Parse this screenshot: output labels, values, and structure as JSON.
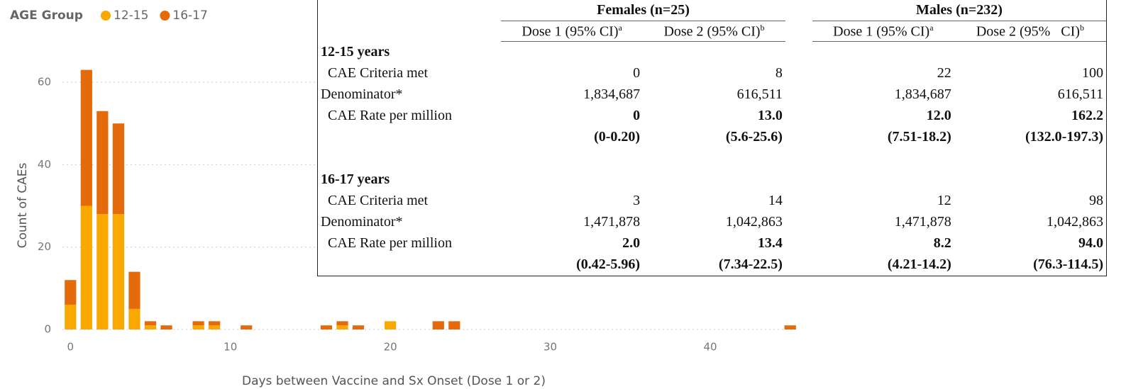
{
  "chart_data": {
    "type": "bar",
    "stacked": true,
    "legend_title": "AGE Group",
    "x": [
      0,
      1,
      2,
      3,
      4,
      5,
      6,
      8,
      9,
      11,
      16,
      17,
      18,
      20,
      23,
      24,
      45
    ],
    "series": [
      {
        "name": "12-15",
        "color": "#f9a800",
        "values": [
          6,
          30,
          28,
          28,
          5,
          1,
          0,
          1,
          1,
          0,
          0,
          1,
          0,
          2,
          0,
          0,
          0
        ]
      },
      {
        "name": "16-17",
        "color": "#e46a0c",
        "values": [
          6,
          33,
          25,
          22,
          9,
          1,
          1,
          1,
          1,
          1,
          1,
          1,
          1,
          0,
          2,
          2,
          1
        ]
      }
    ],
    "xlabel": "Days between Vaccine and Sx Onset (Dose 1 or 2)",
    "ylabel": "Count of CAEs",
    "xlim": [
      -0.5,
      45.5
    ],
    "xticks": [
      0,
      10,
      20,
      30,
      40
    ],
    "ylim": [
      0,
      65
    ],
    "yticks": [
      0,
      20,
      40,
      60
    ],
    "grid": true
  },
  "table": {
    "groups": [
      "Females (n=25)",
      "Males (n=232)"
    ],
    "columns": [
      {
        "text": "Dose 1 (95% CI)",
        "sup": "a"
      },
      {
        "text": "Dose 2 (95% CI)",
        "sup": "b"
      },
      {
        "text": "Dose 1 (95% CI)",
        "sup": "a"
      },
      {
        "text": "Dose 2 (95%   CI)",
        "sup": "b"
      }
    ],
    "sections": [
      {
        "title": "12-15 years",
        "rows": [
          {
            "label": "CAE Criteria met",
            "cells": [
              "0",
              "8",
              "22",
              "100"
            ]
          },
          {
            "label": "Denominator*",
            "cells": [
              "1,834,687",
              "616,511",
              "1,834,687",
              "616,511"
            ]
          },
          {
            "label": "CAE Rate per million",
            "cells": [
              "0",
              "13.0",
              "12.0",
              "162.2"
            ]
          },
          {
            "cells": [
              "(0-0.20)",
              "(5.6-25.6)",
              "(7.51-18.2)",
              "(132.0-197.3)"
            ]
          }
        ]
      },
      {
        "title": "16-17 years",
        "rows": [
          {
            "label": "CAE Criteria met",
            "cells": [
              "3",
              "14",
              "12",
              "98"
            ]
          },
          {
            "label": "Denominator*",
            "cells": [
              "1,471,878",
              "1,042,863",
              "1,471,878",
              "1,042,863"
            ]
          },
          {
            "label": "CAE Rate per million",
            "cells": [
              "2.0",
              "13.4",
              "8.2",
              "94.0"
            ]
          },
          {
            "cells": [
              "(0.42-5.96)",
              "(7.34-22.5)",
              "(4.21-14.2)",
              "(76.3-114.5)"
            ]
          }
        ]
      }
    ]
  }
}
